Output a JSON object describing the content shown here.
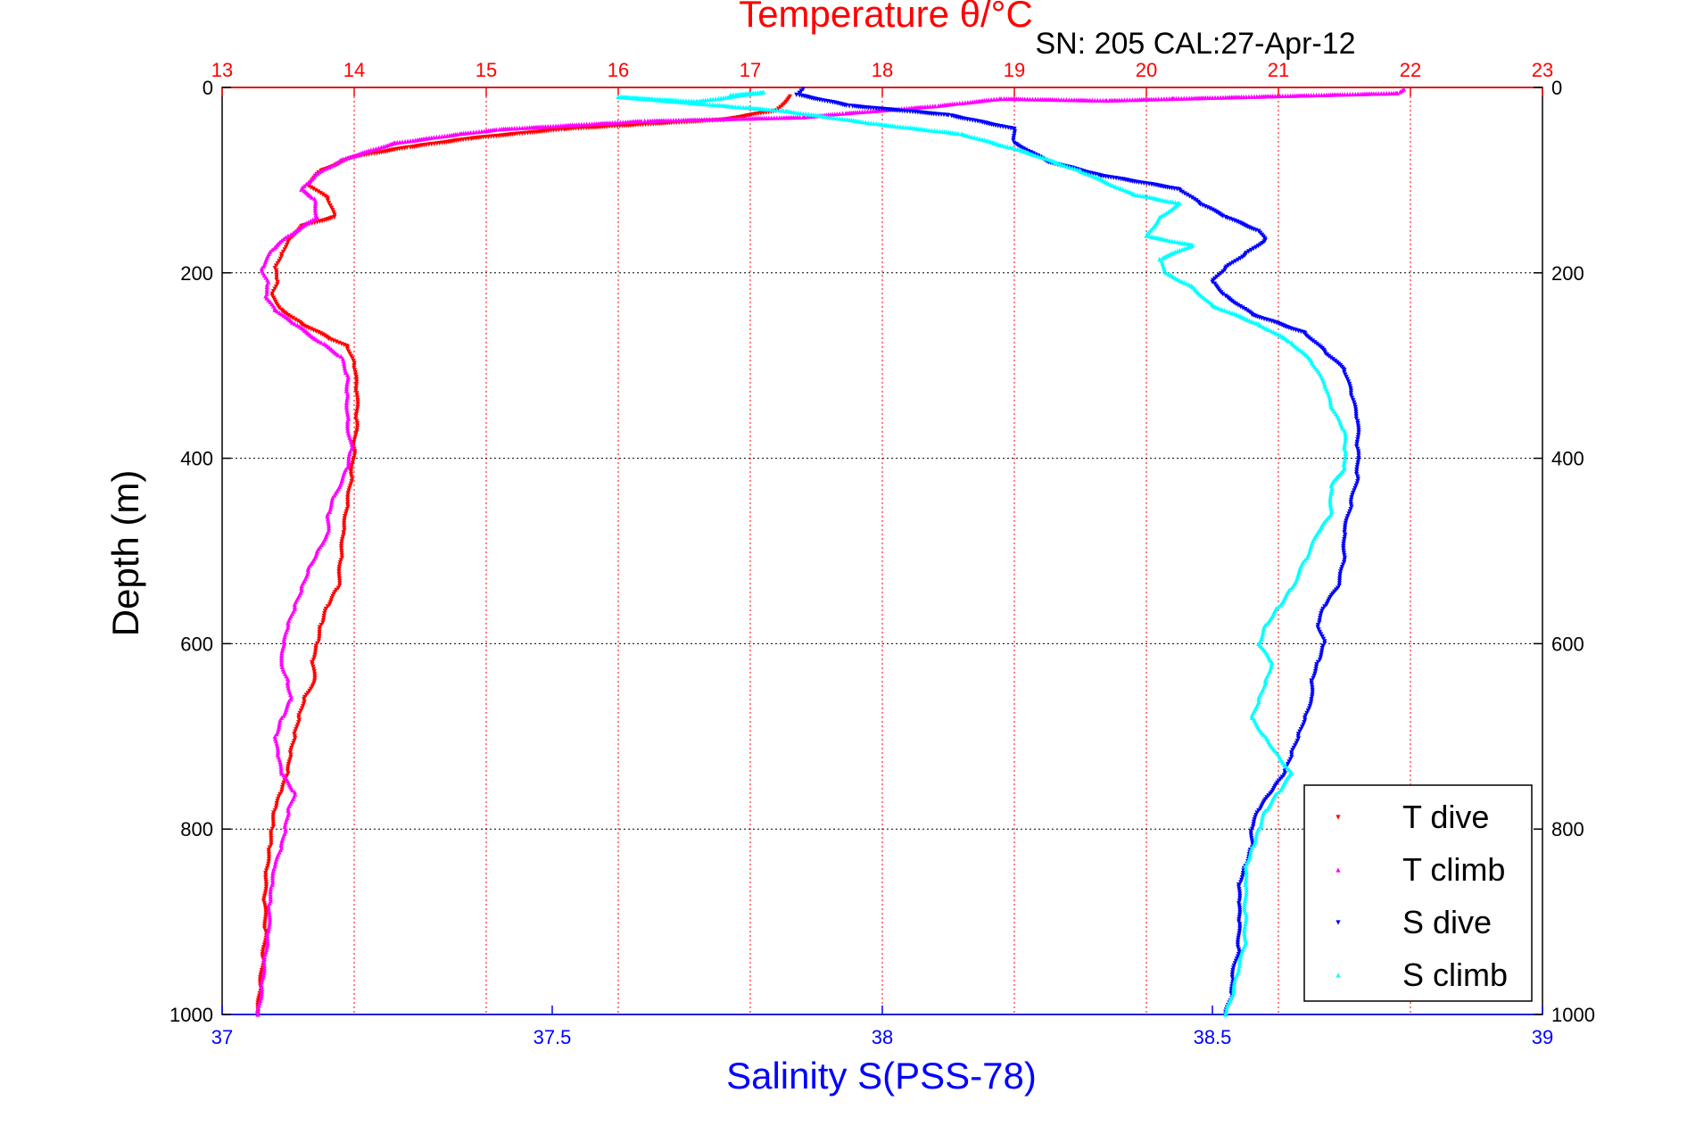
{
  "chart_data": {
    "type": "scatter",
    "title": "Temperature θ/°C",
    "subtitle": "SN: 205  CAL:27-Apr-12",
    "xlabel_top": "Temperature θ/°C",
    "xlabel": "Salinity S(PSS-78)",
    "ylabel": "Depth (m)",
    "temperature_axis": {
      "range": [
        13,
        23
      ],
      "ticks": [
        "13",
        "14",
        "15",
        "16",
        "17",
        "18",
        "19",
        "20",
        "21",
        "22",
        "23"
      ],
      "color": "#ff0000"
    },
    "salinity_axis": {
      "range": [
        37,
        39
      ],
      "ticks": [
        "37",
        "37.5",
        "38",
        "38.5",
        "39"
      ],
      "color": "#0000ff"
    },
    "depth_axis": {
      "range": [
        0,
        1000
      ],
      "reversed": true,
      "ticks": [
        "0",
        "200",
        "400",
        "600",
        "800",
        "1000"
      ]
    },
    "grid": true,
    "legend_position": "bottom-right",
    "series": [
      {
        "name": "T dive",
        "axis": "temperature",
        "marker": "triangle-down",
        "color": "#ff0000",
        "points": [
          [
            17.3,
            10
          ],
          [
            17.2,
            25
          ],
          [
            16.8,
            35
          ],
          [
            15.6,
            45
          ],
          [
            14.9,
            55
          ],
          [
            14.4,
            65
          ],
          [
            14.0,
            75
          ],
          [
            13.75,
            90
          ],
          [
            13.65,
            105
          ],
          [
            13.8,
            120
          ],
          [
            13.85,
            140
          ],
          [
            13.6,
            150
          ],
          [
            13.5,
            165
          ],
          [
            13.45,
            180
          ],
          [
            13.4,
            195
          ],
          [
            13.42,
            210
          ],
          [
            13.38,
            225
          ],
          [
            13.45,
            240
          ],
          [
            13.6,
            255
          ],
          [
            13.8,
            270
          ],
          [
            13.95,
            280
          ],
          [
            14.0,
            300
          ],
          [
            14.02,
            330
          ],
          [
            14.02,
            360
          ],
          [
            14.0,
            390
          ],
          [
            13.98,
            420
          ],
          [
            13.95,
            450
          ],
          [
            13.92,
            480
          ],
          [
            13.9,
            510
          ],
          [
            13.88,
            540
          ],
          [
            13.8,
            560
          ],
          [
            13.75,
            580
          ],
          [
            13.72,
            600
          ],
          [
            13.68,
            620
          ],
          [
            13.7,
            640
          ],
          [
            13.62,
            660
          ],
          [
            13.58,
            680
          ],
          [
            13.55,
            700
          ],
          [
            13.52,
            720
          ],
          [
            13.5,
            740
          ],
          [
            13.45,
            760
          ],
          [
            13.4,
            780
          ],
          [
            13.38,
            800
          ],
          [
            13.36,
            820
          ],
          [
            13.33,
            850
          ],
          [
            13.32,
            880
          ],
          [
            13.33,
            910
          ],
          [
            13.31,
            940
          ],
          [
            13.29,
            970
          ],
          [
            13.27,
            1000
          ]
        ]
      },
      {
        "name": "T climb",
        "axis": "temperature",
        "marker": "triangle-up",
        "color": "#ff00ff",
        "points": [
          [
            21.95,
            2
          ],
          [
            21.9,
            6
          ],
          [
            20.2,
            12
          ],
          [
            19.7,
            14
          ],
          [
            18.9,
            12
          ],
          [
            18.4,
            20
          ],
          [
            17.7,
            28
          ],
          [
            17.4,
            32
          ],
          [
            16.2,
            36
          ],
          [
            15.1,
            45
          ],
          [
            14.8,
            50
          ],
          [
            14.3,
            60
          ],
          [
            13.9,
            78
          ],
          [
            13.7,
            95
          ],
          [
            13.6,
            110
          ],
          [
            13.7,
            120
          ],
          [
            13.72,
            140
          ],
          [
            13.5,
            160
          ],
          [
            13.38,
            175
          ],
          [
            13.3,
            195
          ],
          [
            13.35,
            210
          ],
          [
            13.33,
            225
          ],
          [
            13.4,
            240
          ],
          [
            13.55,
            255
          ],
          [
            13.75,
            275
          ],
          [
            13.9,
            290
          ],
          [
            13.95,
            310
          ],
          [
            13.95,
            330
          ],
          [
            13.95,
            360
          ],
          [
            13.98,
            390
          ],
          [
            13.95,
            410
          ],
          [
            13.85,
            440
          ],
          [
            13.8,
            460
          ],
          [
            13.8,
            480
          ],
          [
            13.72,
            500
          ],
          [
            13.65,
            520
          ],
          [
            13.6,
            540
          ],
          [
            13.55,
            560
          ],
          [
            13.5,
            580
          ],
          [
            13.47,
            600
          ],
          [
            13.45,
            620
          ],
          [
            13.5,
            640
          ],
          [
            13.52,
            660
          ],
          [
            13.45,
            680
          ],
          [
            13.4,
            700
          ],
          [
            13.42,
            720
          ],
          [
            13.45,
            740
          ],
          [
            13.55,
            760
          ],
          [
            13.5,
            780
          ],
          [
            13.48,
            800
          ],
          [
            13.45,
            820
          ],
          [
            13.4,
            840
          ],
          [
            13.38,
            860
          ],
          [
            13.36,
            880
          ],
          [
            13.35,
            910
          ],
          [
            13.32,
            940
          ],
          [
            13.3,
            970
          ],
          [
            13.27,
            1000
          ]
        ]
      },
      {
        "name": "S dive",
        "axis": "salinity",
        "marker": "triangle-down",
        "color": "#0000ff",
        "points": [
          [
            37.88,
            2
          ],
          [
            37.87,
            8
          ],
          [
            37.95,
            20
          ],
          [
            38.1,
            30
          ],
          [
            38.2,
            45
          ],
          [
            38.2,
            60
          ],
          [
            38.25,
            80
          ],
          [
            38.33,
            95
          ],
          [
            38.45,
            110
          ],
          [
            38.48,
            125
          ],
          [
            38.52,
            140
          ],
          [
            38.57,
            155
          ],
          [
            38.58,
            165
          ],
          [
            38.55,
            180
          ],
          [
            38.52,
            195
          ],
          [
            38.5,
            210
          ],
          [
            38.52,
            225
          ],
          [
            38.56,
            245
          ],
          [
            38.64,
            265
          ],
          [
            38.67,
            285
          ],
          [
            38.7,
            305
          ],
          [
            38.71,
            330
          ],
          [
            38.72,
            360
          ],
          [
            38.72,
            390
          ],
          [
            38.72,
            420
          ],
          [
            38.71,
            450
          ],
          [
            38.7,
            480
          ],
          [
            38.7,
            510
          ],
          [
            38.69,
            540
          ],
          [
            38.67,
            560
          ],
          [
            38.66,
            580
          ],
          [
            38.67,
            600
          ],
          [
            38.66,
            620
          ],
          [
            38.65,
            640
          ],
          [
            38.65,
            660
          ],
          [
            38.64,
            680
          ],
          [
            38.63,
            700
          ],
          [
            38.62,
            720
          ],
          [
            38.61,
            740
          ],
          [
            38.59,
            760
          ],
          [
            38.57,
            780
          ],
          [
            38.56,
            800
          ],
          [
            38.56,
            820
          ],
          [
            38.55,
            840
          ],
          [
            38.54,
            860
          ],
          [
            38.54,
            880
          ],
          [
            38.54,
            900
          ],
          [
            38.54,
            930
          ],
          [
            38.53,
            960
          ],
          [
            38.53,
            980
          ],
          [
            38.52,
            1000
          ]
        ]
      },
      {
        "name": "S climb",
        "axis": "salinity",
        "marker": "triangle-up",
        "color": "#00ffff",
        "points": [
          [
            37.77,
            8
          ],
          [
            37.82,
            5
          ],
          [
            37.72,
            15
          ],
          [
            37.6,
            10
          ],
          [
            37.85,
            25
          ],
          [
            38.0,
            40
          ],
          [
            38.12,
            50
          ],
          [
            38.22,
            70
          ],
          [
            38.3,
            90
          ],
          [
            38.38,
            115
          ],
          [
            38.45,
            125
          ],
          [
            38.42,
            140
          ],
          [
            38.4,
            160
          ],
          [
            38.47,
            170
          ],
          [
            38.42,
            185
          ],
          [
            38.43,
            200
          ],
          [
            38.47,
            215
          ],
          [
            38.5,
            235
          ],
          [
            38.57,
            255
          ],
          [
            38.62,
            275
          ],
          [
            38.65,
            295
          ],
          [
            38.67,
            320
          ],
          [
            38.68,
            345
          ],
          [
            38.7,
            370
          ],
          [
            38.7,
            390
          ],
          [
            38.7,
            410
          ],
          [
            38.68,
            430
          ],
          [
            38.68,
            460
          ],
          [
            38.66,
            480
          ],
          [
            38.64,
            510
          ],
          [
            38.62,
            540
          ],
          [
            38.6,
            560
          ],
          [
            38.58,
            580
          ],
          [
            38.57,
            600
          ],
          [
            38.59,
            620
          ],
          [
            38.58,
            640
          ],
          [
            38.57,
            660
          ],
          [
            38.56,
            680
          ],
          [
            38.58,
            700
          ],
          [
            38.6,
            720
          ],
          [
            38.62,
            740
          ],
          [
            38.6,
            760
          ],
          [
            38.58,
            780
          ],
          [
            38.57,
            800
          ],
          [
            38.56,
            820
          ],
          [
            38.55,
            840
          ],
          [
            38.55,
            860
          ],
          [
            38.55,
            890
          ],
          [
            38.55,
            920
          ],
          [
            38.54,
            950
          ],
          [
            38.53,
            980
          ],
          [
            38.52,
            1000
          ]
        ]
      }
    ]
  }
}
